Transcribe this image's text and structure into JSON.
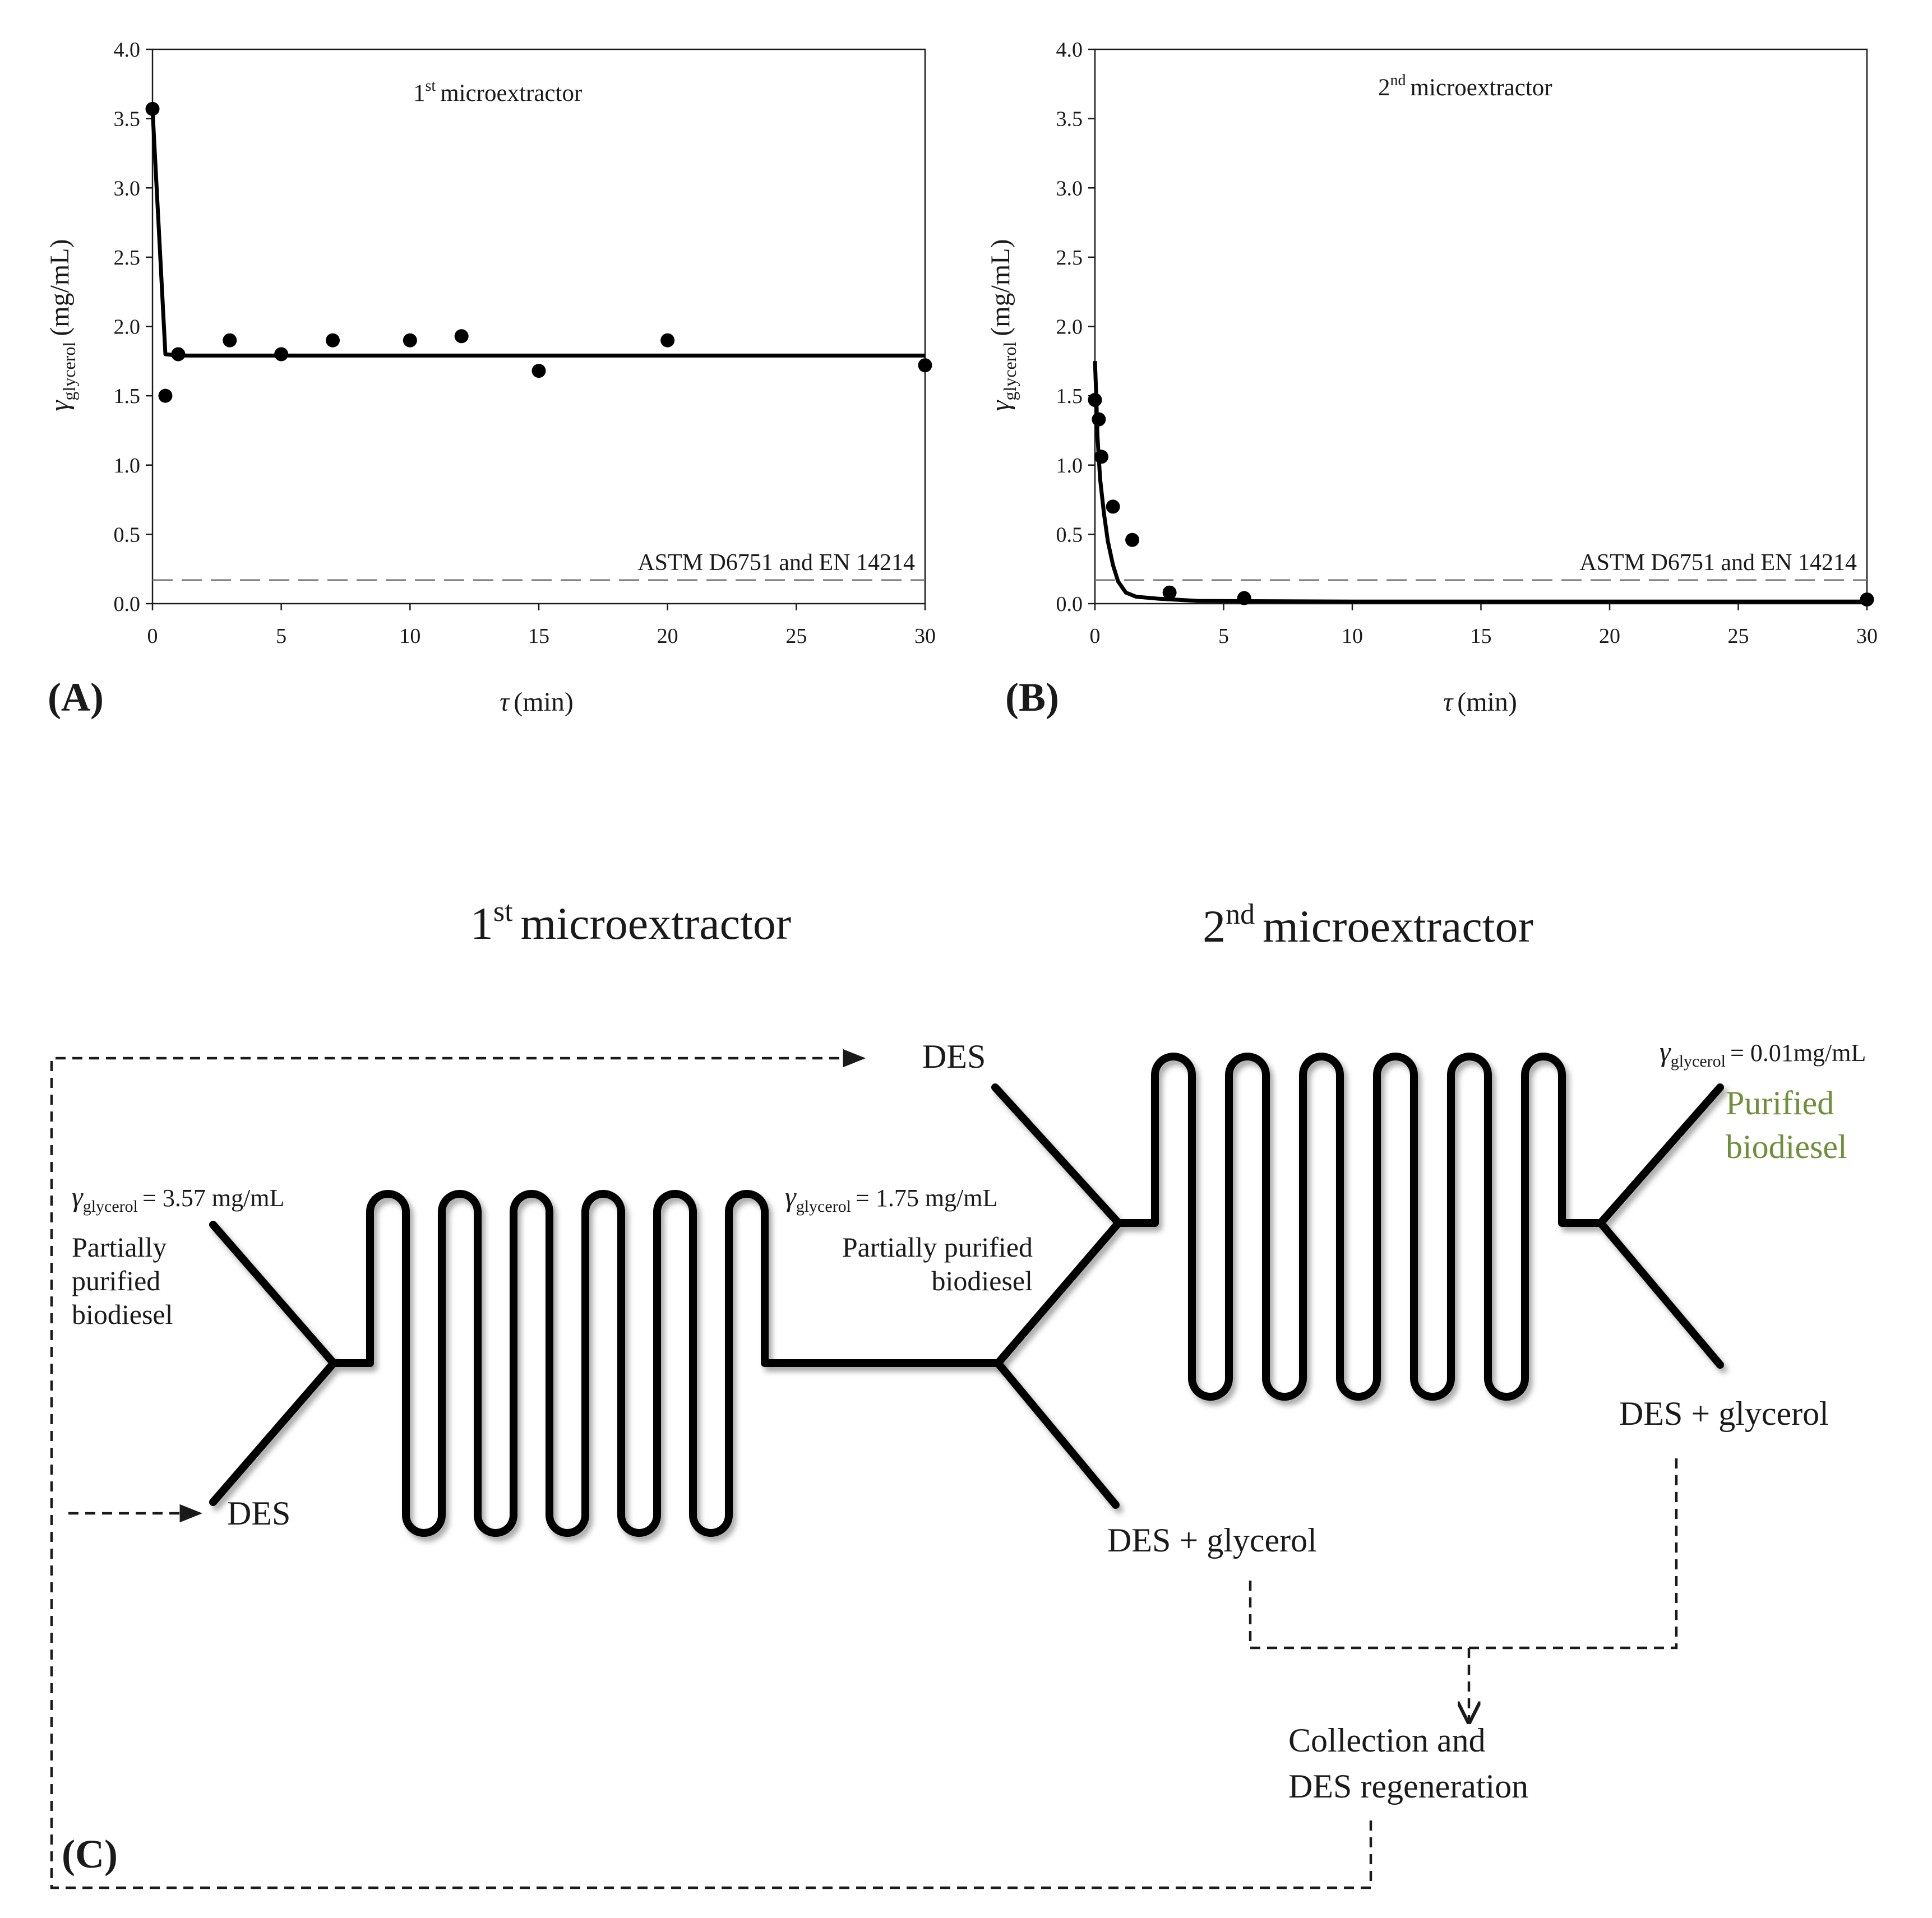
{
  "chart_data": [
    {
      "type": "line",
      "panel": "(A)",
      "title": "microextractor",
      "title_ordinal": "1",
      "title_ordinal_sup": "st",
      "xlabel_symbol": "τ",
      "xlabel_unit": "(min)",
      "ylabel_symbol": "γ",
      "ylabel_sub": "glycerol",
      "ylabel_unit": "(mg/mL)",
      "xlim": [
        0,
        30
      ],
      "ylim": [
        0,
        4
      ],
      "xticks": [
        "0",
        "5",
        "10",
        "15",
        "20",
        "25",
        "30"
      ],
      "yticks": [
        "0.0",
        "0.5",
        "1.0",
        "1.5",
        "2.0",
        "2.5",
        "3.0",
        "3.5",
        "4.0"
      ],
      "reference_line": {
        "label": "ASTM D6751 and EN 14214",
        "y": 0.17,
        "style": "dashed"
      },
      "points": [
        {
          "x": 0,
          "y": 3.57
        },
        {
          "x": 0.5,
          "y": 1.5
        },
        {
          "x": 1,
          "y": 1.8
        },
        {
          "x": 3,
          "y": 1.9
        },
        {
          "x": 5,
          "y": 1.8
        },
        {
          "x": 7,
          "y": 1.9
        },
        {
          "x": 10,
          "y": 1.9
        },
        {
          "x": 12,
          "y": 1.93
        },
        {
          "x": 15,
          "y": 1.68
        },
        {
          "x": 20,
          "y": 1.9
        },
        {
          "x": 30,
          "y": 1.72
        }
      ],
      "model_curve": [
        {
          "x": 0,
          "y": 3.57
        },
        {
          "x": 0.5,
          "y": 1.8
        },
        {
          "x": 1,
          "y": 1.79
        },
        {
          "x": 5,
          "y": 1.79
        },
        {
          "x": 10,
          "y": 1.79
        },
        {
          "x": 20,
          "y": 1.79
        },
        {
          "x": 30,
          "y": 1.79
        }
      ]
    },
    {
      "type": "line",
      "panel": "(B)",
      "title": "microextractor",
      "title_ordinal": "2",
      "title_ordinal_sup": "nd",
      "xlabel_symbol": "τ",
      "xlabel_unit": "(min)",
      "ylabel_symbol": "γ",
      "ylabel_sub": "glycerol",
      "ylabel_unit": "(mg/mL)",
      "xlim": [
        0,
        30
      ],
      "ylim": [
        0,
        4
      ],
      "xticks": [
        "0",
        "5",
        "10",
        "15",
        "20",
        "25",
        "30"
      ],
      "yticks": [
        "0.0",
        "0.5",
        "1.0",
        "1.5",
        "2.0",
        "2.5",
        "3.0",
        "3.5",
        "4.0"
      ],
      "reference_line": {
        "label": "ASTM D6751 and EN 14214",
        "y": 0.17,
        "style": "dashed"
      },
      "points": [
        {
          "x": 0,
          "y": 1.47
        },
        {
          "x": 0.15,
          "y": 1.33
        },
        {
          "x": 0.25,
          "y": 1.06
        },
        {
          "x": 0.7,
          "y": 0.7
        },
        {
          "x": 1.45,
          "y": 0.46
        },
        {
          "x": 2.9,
          "y": 0.08
        },
        {
          "x": 5.8,
          "y": 0.04
        },
        {
          "x": 30,
          "y": 0.03
        }
      ],
      "model_curve": [
        {
          "x": 0,
          "y": 1.75
        },
        {
          "x": 0.05,
          "y": 1.5
        },
        {
          "x": 0.1,
          "y": 1.2
        },
        {
          "x": 0.2,
          "y": 0.9
        },
        {
          "x": 0.35,
          "y": 0.65
        },
        {
          "x": 0.5,
          "y": 0.45
        },
        {
          "x": 0.7,
          "y": 0.28
        },
        {
          "x": 0.9,
          "y": 0.16
        },
        {
          "x": 1.2,
          "y": 0.08
        },
        {
          "x": 1.6,
          "y": 0.05
        },
        {
          "x": 2.5,
          "y": 0.035
        },
        {
          "x": 4,
          "y": 0.02
        },
        {
          "x": 10,
          "y": 0.015
        },
        {
          "x": 20,
          "y": 0.015
        },
        {
          "x": 30,
          "y": 0.015
        }
      ]
    }
  ],
  "schematic": {
    "panel": "(C)",
    "title_first": {
      "ordinal": "1",
      "sup": "st",
      "text": "microextractor"
    },
    "title_second": {
      "ordinal": "2",
      "sup": "nd",
      "text": "microextractor"
    },
    "conc_symbol": "γ",
    "conc_sub": "glycerol",
    "inlet_conc_value": "= 3.57 mg/mL",
    "mid_conc_value": "= 1.75 mg/mL",
    "outlet_conc_value": "= 0.01mg/mL",
    "inlet_label": [
      "Partially",
      "purified",
      "biodiesel"
    ],
    "mid_label": [
      "Partially purified",
      "biodiesel"
    ],
    "outlet_label": [
      "Purified",
      "biodiesel"
    ],
    "outlet_label_color": "#6f8f3a",
    "des_label": "DES",
    "des_glycerol_label": "DES + glycerol",
    "collection_label": [
      "Collection and",
      "DES regeneration"
    ]
  }
}
